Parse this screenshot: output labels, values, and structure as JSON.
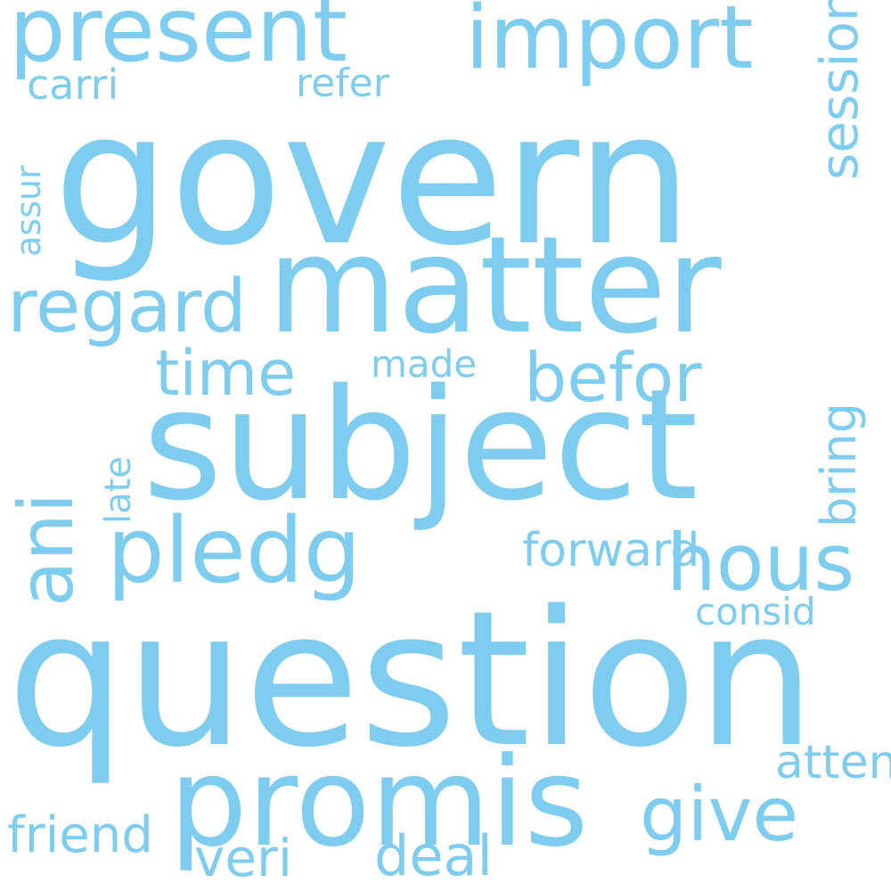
{
  "style": {
    "word_color": "#7ecdf0",
    "background": "#ffffff"
  },
  "words": [
    "govern",
    "question",
    "subject",
    "matter",
    "promis",
    "present",
    "import",
    "pledg",
    "hous",
    "regard",
    "befor",
    "give",
    "time",
    "veri",
    "deal",
    "friend",
    "forward",
    "attent",
    "consid",
    "carri",
    "refer",
    "made",
    "ani",
    "session",
    "bring",
    "late",
    "assur"
  ]
}
